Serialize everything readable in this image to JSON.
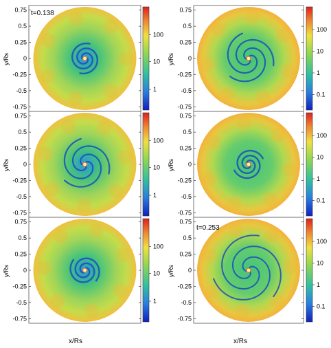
{
  "figure": {
    "time_labels": [
      "t=0.138",
      "t=0.253"
    ],
    "x_axis_label": "x/Rs",
    "y_axis_label": "y/Rs",
    "y_ticks": [
      "0.75",
      "0.5",
      "0.25",
      "0",
      "-0.25",
      "-0.5",
      "-0.75"
    ],
    "colorbar_ticks_a": [
      "100",
      "10",
      "1"
    ],
    "colorbar_ticks_b": [
      "100",
      "10",
      "1",
      "0.1"
    ],
    "colors": {
      "outer": "#f4b23c",
      "mid": "#c4dc4a",
      "inner": "#48c47a",
      "core": "#2ba0c8",
      "arm": "#1a4fb8",
      "center": "#fff6a0"
    }
  },
  "panels": [
    {
      "name": "panel-1",
      "time_label": "t=0.138",
      "colorbar": "a",
      "spiral": "tight"
    },
    {
      "name": "panel-2",
      "time_label": "",
      "colorbar": "a",
      "spiral": "open"
    },
    {
      "name": "panel-3",
      "time_label": "",
      "colorbar": "a",
      "spiral": "tight"
    },
    {
      "name": "panel-4",
      "time_label": "",
      "colorbar": "b",
      "spiral": "open"
    },
    {
      "name": "panel-5",
      "time_label": "",
      "colorbar": "b",
      "spiral": "tight"
    },
    {
      "name": "panel-6",
      "time_label": "t=0.253",
      "colorbar": "b",
      "spiral": "wide"
    }
  ]
}
